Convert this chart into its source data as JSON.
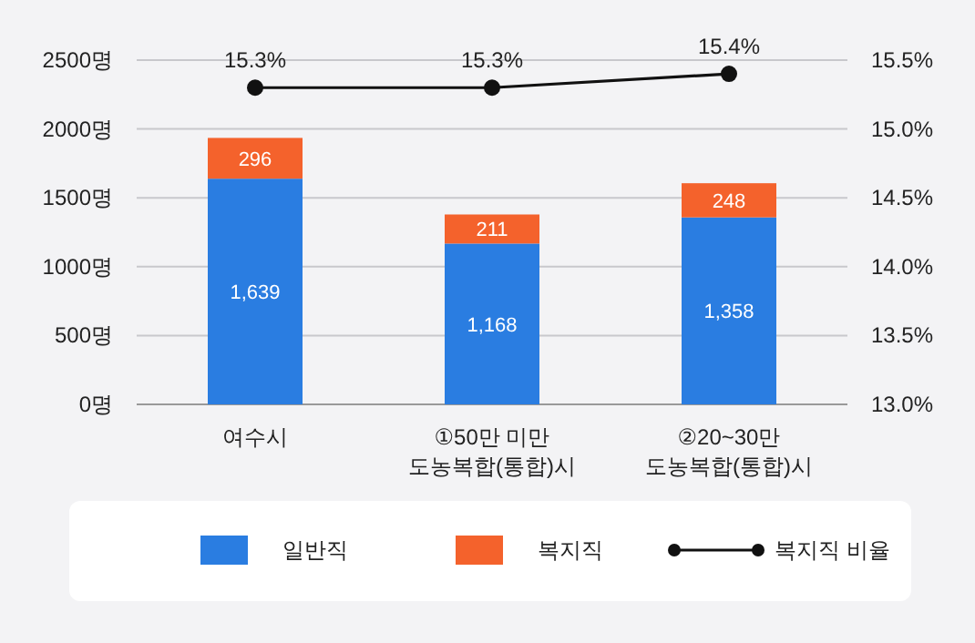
{
  "chart_data": {
    "type": "bar",
    "stacked": true,
    "categories": [
      "여수시",
      "①50만 미만\n도농복합(통합)시",
      "②20~30만\n도농복합(통합)시"
    ],
    "series": [
      {
        "name": "일반직",
        "color": "#2a7de1",
        "values": [
          1639,
          1168,
          1358
        ],
        "value_labels": [
          "1,639",
          "1,168",
          "1,358"
        ]
      },
      {
        "name": "복지직",
        "color": "#f4622c",
        "values": [
          296,
          211,
          248
        ],
        "value_labels": [
          "296",
          "211",
          "248"
        ]
      },
      {
        "name": "복지직 비율",
        "type": "line",
        "axis": "y2",
        "color": "#111111",
        "values": [
          15.3,
          15.3,
          15.4
        ],
        "value_labels": [
          "15.3%",
          "15.3%",
          "15.4%"
        ]
      }
    ],
    "ylim": [
      0,
      2500
    ],
    "yticks": [
      {
        "value": 0,
        "label": "0명"
      },
      {
        "value": 500,
        "label": "500명"
      },
      {
        "value": 1000,
        "label": "1000명"
      },
      {
        "value": 1500,
        "label": "1500명"
      },
      {
        "value": 2000,
        "label": "2000명"
      },
      {
        "value": 2500,
        "label": "2500명"
      }
    ],
    "y2lim": [
      13,
      15.5
    ],
    "y2ticks": [
      {
        "value": 13,
        "label": "13.0%"
      },
      {
        "value": 13.5,
        "label": "13.5%"
      },
      {
        "value": 14,
        "label": "14.0%"
      },
      {
        "value": 14.5,
        "label": "14.5%"
      },
      {
        "value": 15,
        "label": "15.0%"
      },
      {
        "value": 15.5,
        "label": "15.5%"
      }
    ],
    "grid": "y",
    "legend": "bottom",
    "marker": "circle"
  }
}
